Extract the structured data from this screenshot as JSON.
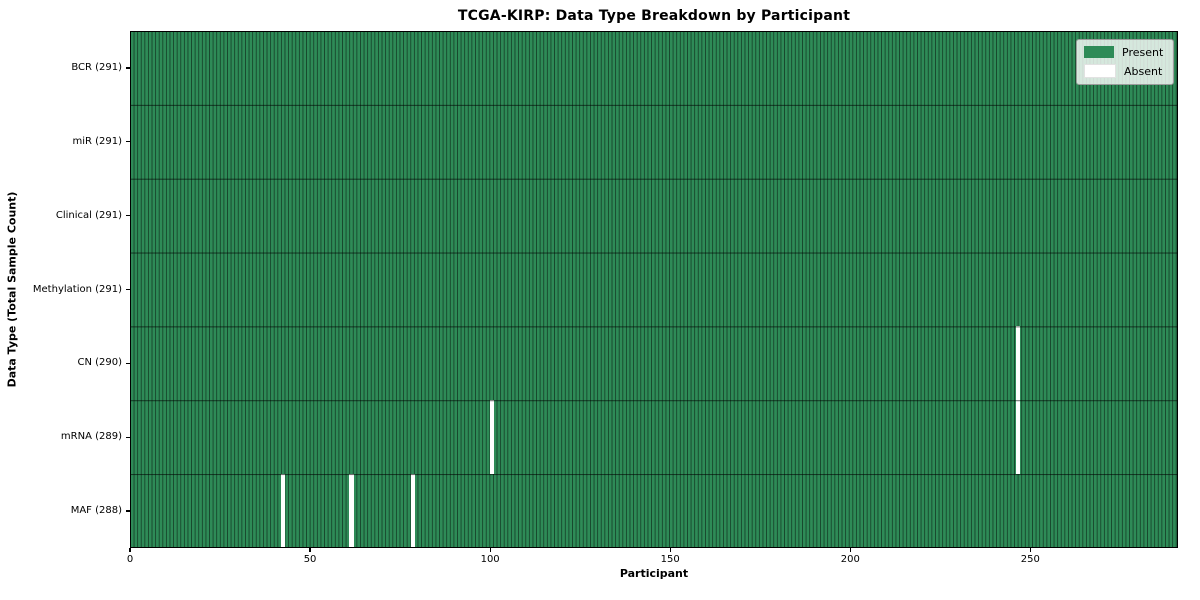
{
  "chart_data": {
    "type": "heatmap",
    "title": "TCGA-KIRP: Data Type Breakdown by Participant",
    "xlabel": "Participant",
    "ylabel": "Data Type (Total Sample Count)",
    "x_ticks": [
      0,
      50,
      100,
      150,
      200,
      250
    ],
    "xlim": [
      0,
      291
    ],
    "n_participants": 291,
    "grid": "cell-edges",
    "legend_position": "upper right",
    "legend": [
      {
        "label": "Present",
        "color": "#2e8b57"
      },
      {
        "label": "Absent",
        "color": "#ffffff"
      }
    ],
    "colors": {
      "present": "#2e8b57",
      "absent": "#ffffff",
      "cell_edge": "rgba(0,0,0,0.5)",
      "row_divider": "rgba(0,0,0,0.6)"
    },
    "rows": [
      {
        "label": "BCR (291)",
        "data_type": "BCR",
        "total_samples": 291,
        "absent_participants": []
      },
      {
        "label": "miR (291)",
        "data_type": "miR",
        "total_samples": 291,
        "absent_participants": []
      },
      {
        "label": "Clinical (291)",
        "data_type": "Clinical",
        "total_samples": 291,
        "absent_participants": []
      },
      {
        "label": "Methylation (291)",
        "data_type": "Methylation",
        "total_samples": 291,
        "absent_participants": []
      },
      {
        "label": "CN (290)",
        "data_type": "CN",
        "total_samples": 290,
        "absent_participants": [
          246
        ]
      },
      {
        "label": "mRNA (289)",
        "data_type": "mRNA",
        "total_samples": 289,
        "absent_participants": [
          100,
          246
        ]
      },
      {
        "label": "MAF (288)",
        "data_type": "MAF",
        "total_samples": 288,
        "absent_participants": [
          42,
          61,
          78
        ]
      }
    ]
  }
}
